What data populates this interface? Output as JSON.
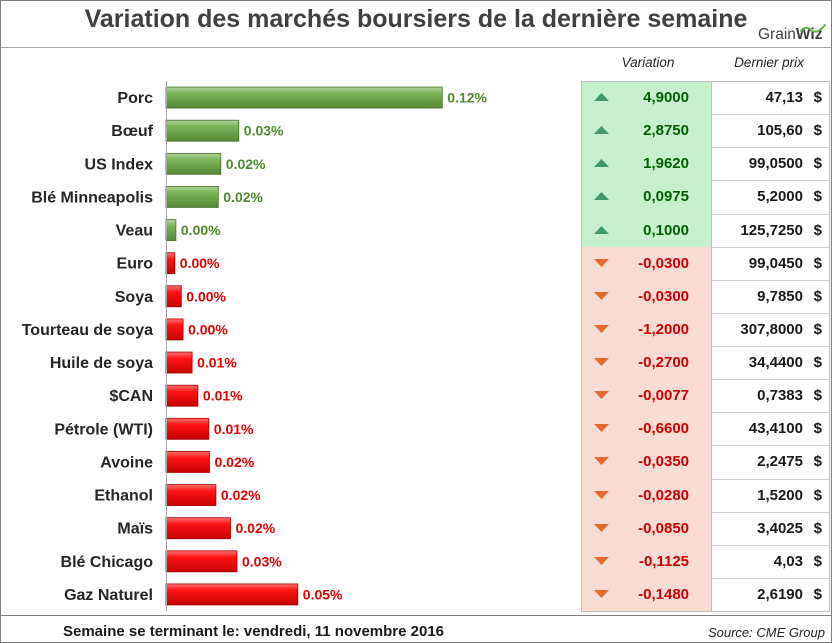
{
  "chart_data": {
    "type": "bar",
    "orientation": "horizontal",
    "title": "Variation des marchés boursiers de la dernière semaine",
    "categories": [
      "Porc",
      "Bœuf",
      "US Index",
      "Blé Minneapolis",
      "Veau",
      "Euro",
      "Soya",
      "Tourteau de soya",
      "Huile de soya",
      "$CAN",
      "Pétrole (WTI)",
      "Avoine",
      "Ethanol",
      "Maïs",
      "Blé Chicago",
      "Gaz Naturel"
    ],
    "values": [
      0.116,
      0.028,
      0.0202,
      0.0191,
      0.0008,
      0.0003,
      0.0031,
      0.0039,
      0.0078,
      0.0103,
      0.015,
      0.0153,
      0.0181,
      0.0244,
      0.0272,
      0.0535
    ],
    "data_labels": [
      "0.12%",
      "0.03%",
      "0.02%",
      "0.02%",
      "0.00%",
      "0.00%",
      "0.00%",
      "0.00%",
      "0.01%",
      "0.01%",
      "0.01%",
      "0.02%",
      "0.02%",
      "0.02%",
      "0.03%",
      "0.05%"
    ],
    "bar_colors": [
      "#70ad47",
      "#70ad47",
      "#70ad47",
      "#70ad47",
      "#70ad47",
      "#ff0000",
      "#ff0000",
      "#ff0000",
      "#ff0000",
      "#ff0000",
      "#ff0000",
      "#ff0000",
      "#ff0000",
      "#ff0000",
      "#ff0000",
      "#ff0000"
    ],
    "data_label_colors": [
      "#4f8a2b",
      "#4f8a2b",
      "#4f8a2b",
      "#4f8a2b",
      "#4f8a2b",
      "#e60000",
      "#e60000",
      "#e60000",
      "#e60000",
      "#e60000",
      "#e60000",
      "#e60000",
      "#e60000",
      "#e60000",
      "#e60000",
      "#e60000"
    ],
    "xlim": [
      -0.0035,
      0.176
    ],
    "grid": false,
    "legend": "none"
  },
  "table": {
    "headers": {
      "variation": "Variation",
      "price": "Dernier prix"
    },
    "rows": [
      {
        "variation": "4,9000",
        "price": "47,13",
        "currency": "$",
        "icon": "triangle-up-icon"
      },
      {
        "variation": "2,8750",
        "price": "105,60",
        "currency": "$",
        "icon": "triangle-up-icon"
      },
      {
        "variation": "1,9620",
        "price": "99,0500",
        "currency": "$",
        "icon": "triangle-up-icon"
      },
      {
        "variation": "0,0975",
        "price": "5,2000",
        "currency": "$",
        "icon": "triangle-up-icon"
      },
      {
        "variation": "0,1000",
        "price": "125,7250",
        "currency": "$",
        "icon": "triangle-up-icon"
      },
      {
        "variation": "-0,0300",
        "price": "99,0450",
        "currency": "$",
        "icon": "triangle-down-icon"
      },
      {
        "variation": "-0,0300",
        "price": "9,7850",
        "currency": "$",
        "icon": "triangle-down-icon"
      },
      {
        "variation": "-1,2000",
        "price": "307,8000",
        "currency": "$",
        "icon": "triangle-down-icon"
      },
      {
        "variation": "-0,2700",
        "price": "34,4400",
        "currency": "$",
        "icon": "triangle-down-icon"
      },
      {
        "variation": "-0,0077",
        "price": "0,7383",
        "currency": "$",
        "icon": "triangle-down-icon"
      },
      {
        "variation": "-0,6600",
        "price": "43,4100",
        "currency": "$",
        "icon": "triangle-down-icon"
      },
      {
        "variation": "-0,0350",
        "price": "2,2475",
        "currency": "$",
        "icon": "triangle-down-icon"
      },
      {
        "variation": "-0,0280",
        "price": "1,5200",
        "currency": "$",
        "icon": "triangle-down-icon"
      },
      {
        "variation": "-0,0850",
        "price": "3,4025",
        "currency": "$",
        "icon": "triangle-down-icon"
      },
      {
        "variation": "-0,1125",
        "price": "4,03",
        "currency": "$",
        "icon": "triangle-down-icon"
      },
      {
        "variation": "-0,1480",
        "price": "2,6190",
        "currency": "$",
        "icon": "triangle-down-icon"
      }
    ]
  },
  "colors": {
    "up_fill": "#c6efce",
    "down_fill": "#f8dcd3",
    "up_text": "#006100",
    "down_text": "#cc0000",
    "up_arrow": "#3c9a6e",
    "down_arrow": "#e4692d",
    "logo_swoosh": "#6ab04c"
  },
  "logo": {
    "text1": "Grain",
    "text2": "Wiz"
  },
  "footer": {
    "week_ending": "Semaine se terminant le: vendredi, 11 novembre 2016",
    "source": "Source: CME Group"
  }
}
